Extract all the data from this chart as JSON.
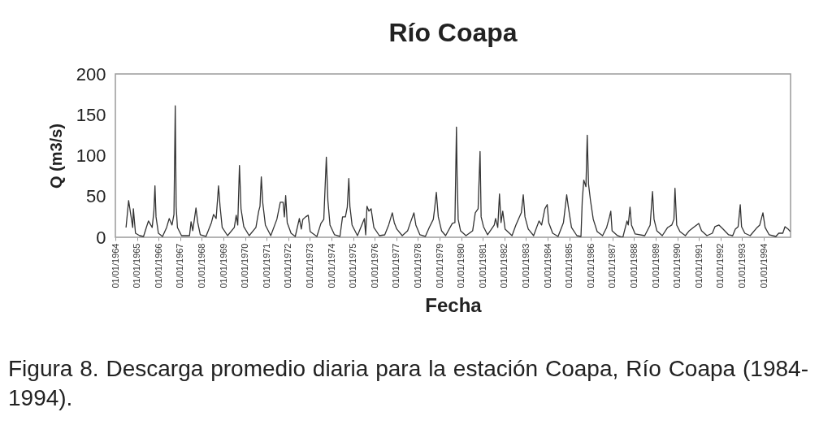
{
  "chart_data": {
    "type": "line",
    "title": "Río Coapa",
    "xlabel": "Fecha",
    "ylabel": "Q (m3/s)",
    "annotations": [
      "Figura 8. Descarga promedio diaria para la estación Coapa, Río Coapa (1984-1994)."
    ],
    "color": "#333333",
    "xlim": [
      "1964-01-01",
      "1995-03-29"
    ],
    "ylim": [
      0,
      200
    ],
    "yticks": [
      0,
      50,
      100,
      150,
      200
    ],
    "xticks": [
      {
        "value": "1964-01-01",
        "label": "01/01/1964"
      },
      {
        "value": "1965-01-01",
        "label": "01/01/1965"
      },
      {
        "value": "1966-01-01",
        "label": "01/01/1966"
      },
      {
        "value": "1967-01-01",
        "label": "01/01/1967"
      },
      {
        "value": "1968-01-01",
        "label": "01/01/1968"
      },
      {
        "value": "1969-01-01",
        "label": "01/01/1969"
      },
      {
        "value": "1970-01-01",
        "label": "01/01/1970"
      },
      {
        "value": "1971-01-01",
        "label": "01/01/1971"
      },
      {
        "value": "1972-01-01",
        "label": "01/01/1972"
      },
      {
        "value": "1973-01-01",
        "label": "01/01/1973"
      },
      {
        "value": "1974-01-01",
        "label": "01/01/1974"
      },
      {
        "value": "1975-01-01",
        "label": "01/01/1975"
      },
      {
        "value": "1976-01-01",
        "label": "01/01/1976"
      },
      {
        "value": "1977-01-01",
        "label": "01/01/1977"
      },
      {
        "value": "1978-01-01",
        "label": "01/01/1978"
      },
      {
        "value": "1979-01-01",
        "label": "01/01/1979"
      },
      {
        "value": "1980-01-01",
        "label": "01/01/1980"
      },
      {
        "value": "1981-01-01",
        "label": "01/01/1981"
      },
      {
        "value": "1982-01-01",
        "label": "01/01/1982"
      },
      {
        "value": "1983-01-01",
        "label": "01/01/1983"
      },
      {
        "value": "1984-01-01",
        "label": "01/01/1984"
      },
      {
        "value": "1985-01-01",
        "label": "01/01/1985"
      },
      {
        "value": "1986-01-01",
        "label": "01/01/1986"
      },
      {
        "value": "1987-01-01",
        "label": "01/01/1987"
      },
      {
        "value": "1988-01-01",
        "label": "01/01/1988"
      },
      {
        "value": "1989-01-01",
        "label": "01/01/1989"
      },
      {
        "value": "1990-01-01",
        "label": "01/01/1990"
      },
      {
        "value": "1991-01-01",
        "label": "01/01/1991"
      },
      {
        "value": "1992-01-01",
        "label": "01/01/1992"
      },
      {
        "value": "1993-01-01",
        "label": "01/01/1993"
      },
      {
        "value": "1994-01-01",
        "label": "01/01/1994"
      }
    ],
    "x": [
      "1964-06-29",
      "1964-08-12",
      "1964-10-20",
      "1964-10-31",
      "1964-12-06",
      "1965-02-14",
      "1965-04-21",
      "1965-06-07",
      "1965-07-13",
      "1965-09-14",
      "1965-10-13",
      "1965-10-31",
      "1965-11-18",
      "1965-12-28",
      "1966-03-08",
      "1966-05-16",
      "1966-06-29",
      "1966-08-15",
      "1966-09-17",
      "1966-10-09",
      "1966-10-24",
      "1966-11-15",
      "1967-01-23",
      "1967-06-07",
      "1967-07-03",
      "1967-08-01",
      "1967-09-24",
      "1967-10-24",
      "1967-12-06",
      "1968-03-11",
      "1968-06-11",
      "1968-07-17",
      "1968-08-30",
      "1968-10-09",
      "1968-11-04",
      "1968-12-10",
      "1969-03-11",
      "1969-07-03",
      "1969-08-04",
      "1969-08-30",
      "1969-09-28",
      "1969-10-24",
      "1969-12-10",
      "1970-03-11",
      "1970-07-03",
      "1970-08-19",
      "1970-09-10",
      "1970-10-02",
      "1970-10-27",
      "1970-12-10",
      "1971-03-11",
      "1971-06-22",
      "1971-08-19",
      "1971-10-05",
      "1971-10-27",
      "1971-11-18",
      "1971-12-14",
      "1972-02-17",
      "1972-04-28",
      "1972-07-06",
      "1972-08-08",
      "1972-09-03",
      "1972-10-20",
      "1972-12-03",
      "1973-01-05",
      "1973-04-28",
      "1973-07-06",
      "1973-08-23",
      "1973-10-05",
      "1973-10-31",
      "1973-12-06",
      "1974-02-21",
      "1974-05-23",
      "1974-07-06",
      "1974-08-23",
      "1974-09-24",
      "1974-10-20",
      "1974-11-07",
      "1974-12-14",
      "1975-03-15",
      "1975-07-10",
      "1975-08-01",
      "1975-08-23",
      "1975-09-24",
      "1975-10-31",
      "1975-12-17",
      "1976-03-19",
      "1976-06-18",
      "1976-08-23",
      "1976-10-24",
      "1976-11-26",
      "1977-01-08",
      "1977-04-10",
      "1977-07-10",
      "1977-08-26",
      "1977-10-24",
      "1977-11-26",
      "1978-02-03",
      "1978-05-05",
      "1978-07-10",
      "1978-09-17",
      "1978-10-09",
      "1978-11-07",
      "1978-12-10",
      "1979-02-03",
      "1979-04-13",
      "1979-08-04",
      "1979-09-17",
      "1979-10-13",
      "1979-10-24",
      "1979-11-11",
      "1979-12-21",
      "1980-03-22",
      "1980-07-13",
      "1980-08-26",
      "1980-10-13",
      "1980-11-15",
      "1980-12-03",
      "1981-01-12",
      "1981-03-22",
      "1981-07-13",
      "1981-08-04",
      "1981-09-10",
      "1981-10-09",
      "1981-11-04",
      "1981-12-03",
      "1982-01-12",
      "1982-05-09",
      "1982-07-13",
      "1982-08-30",
      "1982-10-13",
      "1982-11-15",
      "1982-12-14",
      "1983-02-07",
      "1983-05-09",
      "1983-08-08",
      "1983-09-21",
      "1983-11-15",
      "1983-12-25",
      "1984-01-19",
      "1984-03-26",
      "1984-06-25",
      "1984-09-24",
      "1984-11-18",
      "1984-12-14",
      "1985-02-07",
      "1985-05-09",
      "1985-07-17",
      "1985-08-08",
      "1985-09-03",
      "1985-10-09",
      "1985-10-31",
      "1985-11-22",
      "1985-12-25",
      "1986-02-10",
      "1986-04-17",
      "1986-07-17",
      "1986-09-24",
      "1986-11-11",
      "1986-12-03",
      "1986-12-25",
      "1987-03-26",
      "1987-06-25",
      "1987-09-03",
      "1987-09-24",
      "1987-10-24",
      "1987-11-18",
      "1988-01-19",
      "1988-06-29",
      "1988-09-28",
      "1988-11-07",
      "1988-12-03",
      "1989-01-19",
      "1989-04-21",
      "1989-07-21",
      "1989-09-28",
      "1989-11-04",
      "1989-11-22",
      "1989-12-21",
      "1990-02-14",
      "1990-05-16",
      "1990-07-21",
      "1990-09-28",
      "1990-12-28",
      "1991-02-14",
      "1991-05-16",
      "1991-08-15",
      "1991-09-28",
      "1991-12-06",
      "1992-02-14",
      "1992-05-16",
      "1992-07-24",
      "1992-09-06",
      "1992-10-24",
      "1992-11-29",
      "1992-12-21",
      "1993-02-14",
      "1993-05-16",
      "1993-09-10",
      "1993-10-24",
      "1993-12-17",
      "1994-01-23",
      "1994-04-02",
      "1994-07-24",
      "1994-09-10",
      "1994-11-18",
      "1994-12-25",
      "1995-02-17",
      "1995-03-22"
    ],
    "values": [
      12,
      45,
      12,
      35,
      5,
      2,
      1,
      12,
      20,
      12,
      32,
      63,
      25,
      5,
      1,
      12,
      23,
      15,
      28,
      161,
      38,
      12,
      2,
      2,
      19,
      8,
      36,
      18,
      3,
      1,
      18,
      28,
      23,
      63,
      38,
      12,
      2,
      12,
      27,
      15,
      88,
      35,
      13,
      2,
      12,
      32,
      38,
      74,
      42,
      15,
      2,
      22,
      43,
      43,
      25,
      51,
      18,
      5,
      1,
      23,
      10,
      22,
      25,
      27,
      7,
      1,
      17,
      22,
      98,
      45,
      15,
      3,
      1,
      25,
      25,
      37,
      72,
      38,
      15,
      2,
      23,
      3,
      38,
      32,
      35,
      12,
      2,
      3,
      15,
      30,
      18,
      10,
      2,
      8,
      18,
      30,
      15,
      3,
      1,
      12,
      22,
      35,
      55,
      25,
      8,
      2,
      17,
      18,
      135,
      75,
      22,
      8,
      2,
      8,
      30,
      35,
      105,
      25,
      13,
      3,
      15,
      23,
      12,
      53,
      18,
      32,
      10,
      2,
      15,
      23,
      30,
      52,
      25,
      10,
      2,
      20,
      15,
      35,
      40,
      18,
      5,
      1,
      18,
      52,
      38,
      12,
      2,
      1,
      45,
      70,
      62,
      125,
      65,
      45,
      22,
      7,
      2,
      12,
      25,
      32,
      8,
      2,
      0,
      20,
      15,
      37,
      15,
      4,
      2,
      15,
      56,
      22,
      8,
      2,
      12,
      15,
      22,
      60,
      15,
      7,
      2,
      8,
      12,
      17,
      8,
      2,
      5,
      13,
      15,
      10,
      3,
      2,
      10,
      13,
      40,
      13,
      5,
      2,
      12,
      15,
      30,
      12,
      3,
      1,
      5,
      5,
      13,
      10,
      7
    ]
  }
}
